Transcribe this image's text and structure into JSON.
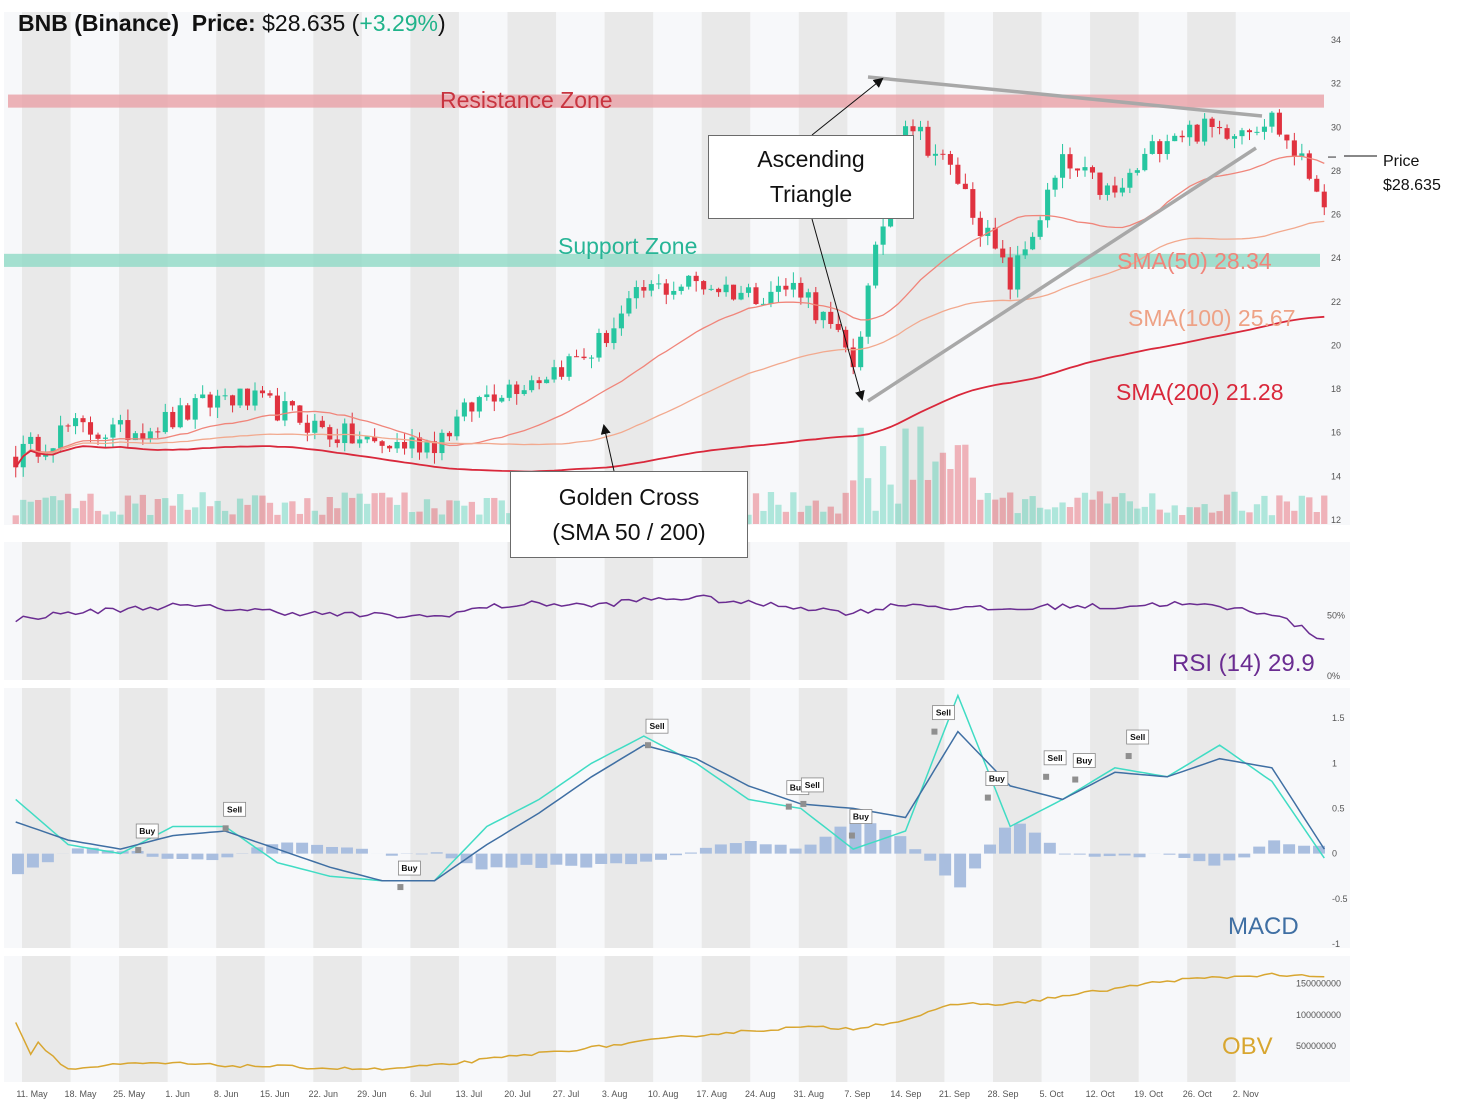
{
  "header": {
    "symbol": "BNB (Binance)",
    "price_label": "Price:",
    "price": "$28.635",
    "change_open": "(",
    "change": "+3.29%",
    "change_close": ")"
  },
  "annotations": {
    "resistance": "Resistance Zone",
    "support": "Support Zone",
    "triangle_line1": "Ascending",
    "triangle_line2": "Triangle",
    "golden_line1": "Golden Cross",
    "golden_line2": "(SMA 50 / 200)",
    "price_tag_line1": "Price",
    "price_tag_line2": "$28.635"
  },
  "sma_labels": {
    "sma50": "SMA(50) 28.34",
    "sma100": "SMA(100) 25.67",
    "sma200": "SMA(200) 21.28"
  },
  "indicator_labels": {
    "rsi": "RSI (14)  29.9",
    "macd": "MACD",
    "obv": "OBV"
  },
  "colors": {
    "up": "#26c6a0",
    "down": "#e0323f",
    "sma50": "#f0857a",
    "sma100": "#f2a98e",
    "sma200": "#d9283b",
    "resistance": "#e8a0a6",
    "support": "#8fd9c5",
    "rsi": "#6a2c91",
    "macd": "#3f6fa3",
    "signal": "#40dcc4",
    "hist": "#a9bedf",
    "obv": "#d8a630"
  },
  "chart_data": [
    {
      "type": "candlestick",
      "panel": "price",
      "y_ticks": [
        12,
        14,
        16,
        18,
        20,
        22,
        24,
        26,
        28,
        30,
        32,
        34
      ],
      "ylim": [
        12,
        35
      ],
      "resistance_zone": [
        30.9,
        31.5
      ],
      "support_zone": [
        23.6,
        24.2
      ],
      "last_price": 28.635,
      "weekly_close": [
        14.9,
        16.2,
        16.0,
        16.6,
        17.7,
        17.1,
        16.0,
        15.4,
        15.6,
        17.8,
        18.6,
        19.7,
        22.5,
        22.9,
        22.4,
        22.7,
        19.2,
        30.5,
        27.6,
        22.9,
        28.3,
        26.8,
        29.8,
        29.9,
        30.4,
        26.8
      ],
      "sma50_end": 28.34,
      "sma100_end": 25.67,
      "sma200_end": 21.28
    },
    {
      "type": "line",
      "panel": "rsi",
      "name": "RSI (14)",
      "y_ticks": [
        "50%",
        "0%"
      ],
      "ylim": [
        0,
        100
      ],
      "weekly": [
        47,
        52,
        55,
        58,
        56,
        53,
        51,
        50,
        49,
        57,
        60,
        58,
        63,
        65,
        60,
        57,
        52,
        60,
        56,
        55,
        58,
        57,
        60,
        57,
        52,
        30
      ],
      "last": 29.9
    },
    {
      "type": "line",
      "panel": "macd",
      "name": "MACD",
      "y_ticks": [
        1.5,
        1,
        0.5,
        0,
        -0.5,
        -1
      ],
      "ylim": [
        -1,
        1.7
      ],
      "macd_weekly": [
        0.35,
        0.15,
        0.05,
        0.2,
        0.25,
        0.05,
        -0.15,
        -0.3,
        -0.3,
        0.1,
        0.45,
        0.85,
        1.2,
        1.05,
        0.75,
        0.55,
        0.5,
        0.4,
        1.35,
        0.75,
        0.6,
        0.9,
        0.85,
        1.05,
        0.95,
        0.05
      ],
      "signal_weekly": [
        0.6,
        0.1,
        0.0,
        0.3,
        0.3,
        -0.1,
        -0.25,
        -0.3,
        -0.3,
        0.3,
        0.6,
        1.0,
        1.3,
        1.0,
        0.6,
        0.5,
        0.05,
        0.25,
        1.75,
        0.3,
        0.6,
        0.95,
        0.85,
        1.2,
        0.8,
        -0.05
      ],
      "signals": [
        {
          "label": "Buy",
          "week": 2.6,
          "value": 0.04
        },
        {
          "label": "Sell",
          "week": 4.4,
          "value": 0.28
        },
        {
          "label": "Buy",
          "week": 8.0,
          "value": -0.37
        },
        {
          "label": "Sell",
          "week": 13.1,
          "value": 1.2
        },
        {
          "label": "Buy",
          "week": 16.0,
          "value": 0.52
        },
        {
          "label": "Sell",
          "week": 16.3,
          "value": 0.55
        },
        {
          "label": "Buy",
          "week": 17.3,
          "value": 0.2
        },
        {
          "label": "Sell",
          "week": 19.0,
          "value": 1.35
        },
        {
          "label": "Buy",
          "week": 20.1,
          "value": 0.62
        },
        {
          "label": "Sell",
          "week": 21.3,
          "value": 0.85
        },
        {
          "label": "Buy",
          "week": 21.9,
          "value": 0.82
        },
        {
          "label": "Sell",
          "week": 23.0,
          "value": 1.08
        }
      ]
    },
    {
      "type": "line",
      "panel": "obv",
      "name": "OBV",
      "y_ticks": [
        "150000000",
        "100000000",
        "50000000"
      ],
      "ylim": [
        -5000000,
        185000000
      ],
      "weekly": [
        88000000,
        12000000,
        20000000,
        22000000,
        18000000,
        17000000,
        14000000,
        12000000,
        18000000,
        28000000,
        38000000,
        47000000,
        57000000,
        67000000,
        74000000,
        80000000,
        78000000,
        92000000,
        118000000,
        117000000,
        130000000,
        142000000,
        155000000,
        160000000,
        165000000,
        160000000
      ]
    }
  ],
  "x_axis": {
    "labels": [
      "11. May",
      "18. May",
      "25. May",
      "1. Jun",
      "8. Jun",
      "15. Jun",
      "22. Jun",
      "29. Jun",
      "6. Jul",
      "13. Jul",
      "20. Jul",
      "27. Jul",
      "3. Aug",
      "10. Aug",
      "17. Aug",
      "24. Aug",
      "31. Aug",
      "7. Sep",
      "14. Sep",
      "21. Sep",
      "28. Sep",
      "5. Oct",
      "12. Oct",
      "19. Oct",
      "26. Oct",
      "2. Nov"
    ]
  }
}
